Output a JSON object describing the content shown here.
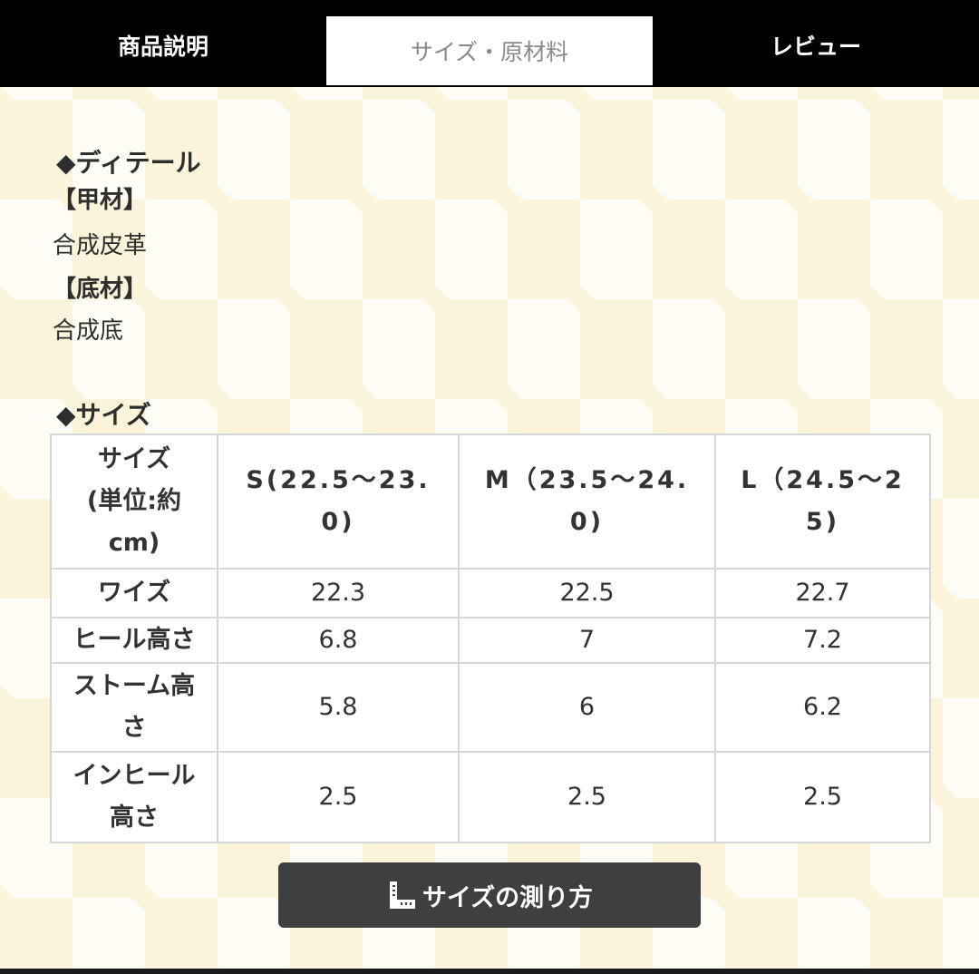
{
  "tabs": {
    "description": "商品説明",
    "size_material": "サイズ・原材料",
    "review": "レビュー"
  },
  "detail": {
    "heading": "◆ディテール",
    "upper_label": "【甲材】",
    "upper_value": "合成皮革",
    "sole_label": "【底材】",
    "sole_value": "合成底"
  },
  "size_section": {
    "heading": "◆サイズ",
    "table": {
      "corner": [
        "サイズ",
        "(単位:約",
        "cm)"
      ],
      "columns": [
        [
          "S(22.5〜23.",
          "0)"
        ],
        [
          "M（23.5〜24.",
          "0)"
        ],
        [
          "L（24.5〜2",
          "5)"
        ]
      ],
      "rows": [
        {
          "label": [
            "ワイズ"
          ],
          "values": [
            "22.3",
            "22.5",
            "22.7"
          ]
        },
        {
          "label": [
            "ヒール高さ"
          ],
          "values": [
            "6.8",
            "7",
            "7.2"
          ]
        },
        {
          "label": [
            "ストーム高",
            "さ"
          ],
          "values": [
            "5.8",
            "6",
            "6.2"
          ]
        },
        {
          "label": [
            "インヒール",
            "高さ"
          ],
          "values": [
            "2.5",
            "2.5",
            "2.5"
          ]
        }
      ]
    }
  },
  "measure_button": {
    "label": "サイズの測り方",
    "icon": "ruler-icon"
  },
  "colors": {
    "tab_bar": "#000000",
    "active_tab": "#ffffff",
    "button": "#3f3f3f",
    "table_border": "#d6d6d6"
  }
}
